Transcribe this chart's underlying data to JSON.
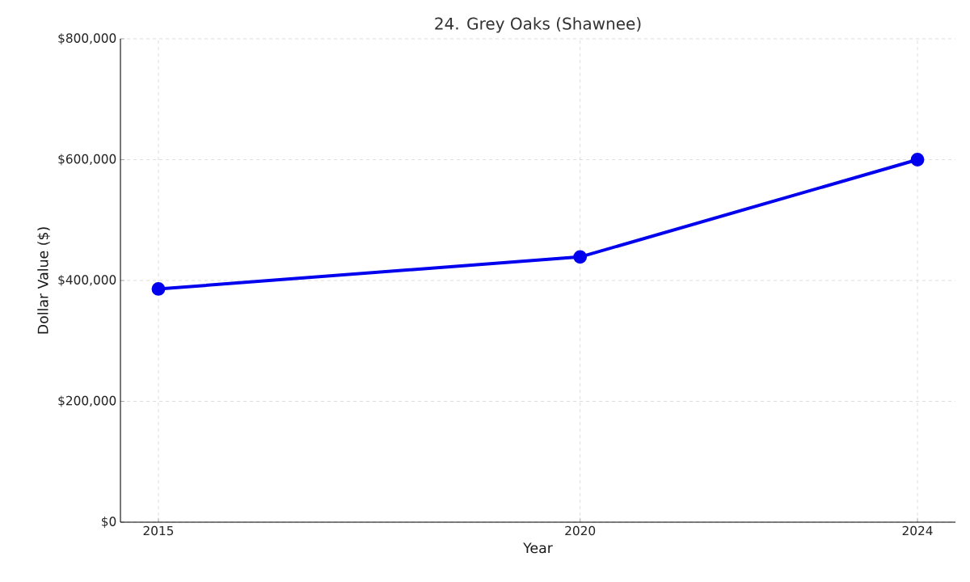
{
  "chart_data": {
    "type": "line",
    "title": "24. Grey Oaks (Shawnee)",
    "xlabel": "Year",
    "ylabel": "Dollar Value ($)",
    "x": [
      2015,
      2020,
      2024
    ],
    "series": [
      {
        "color": "#0000ee",
        "values": [
          386000,
          439000,
          600000
        ]
      }
    ],
    "xlim": [
      2014.55,
      2024.45
    ],
    "xticks": [
      2015,
      2020,
      2024
    ],
    "ylim": [
      0,
      800000
    ],
    "yticks": [
      {
        "value": 0,
        "label": "$0"
      },
      {
        "value": 200000,
        "label": "$200,000"
      },
      {
        "value": 400000,
        "label": "$400,000"
      },
      {
        "value": 600000,
        "label": "$600,000"
      },
      {
        "value": 800000,
        "label": "$800,000"
      }
    ],
    "grid": true,
    "marker": "circle",
    "line_style": "solid"
  }
}
